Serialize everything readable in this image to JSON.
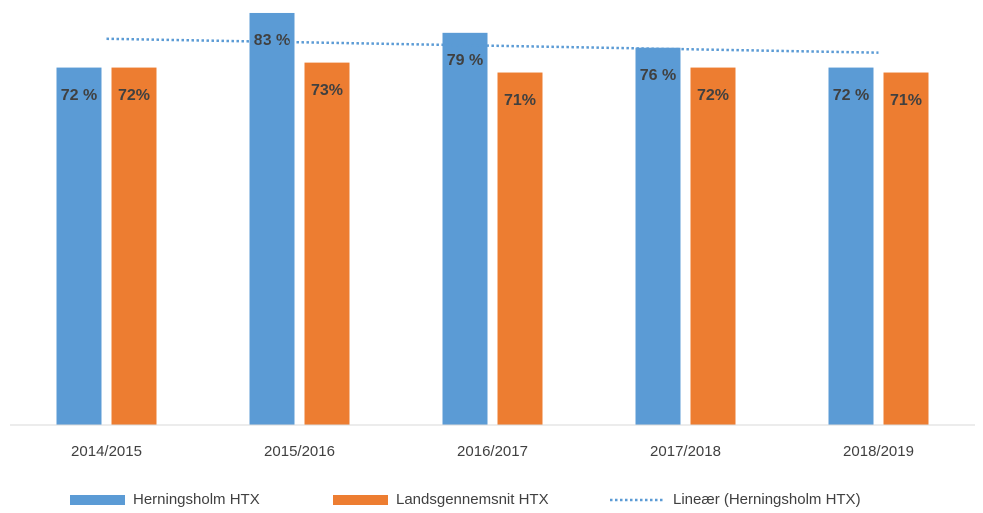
{
  "chart_data": {
    "type": "bar",
    "categories": [
      "2014/2015",
      "2015/2016",
      "2016/2017",
      "2017/2018",
      "2018/2019"
    ],
    "series": [
      {
        "name": "Herningsholm HTX",
        "color": "#5b9bd5",
        "values": [
          72,
          83,
          79,
          76,
          72
        ],
        "value_labels": [
          "72 %",
          "83 %",
          "79 %",
          "76 %",
          "72 %"
        ]
      },
      {
        "name": "Landsgennemsnit HTX",
        "color": "#ed7d31",
        "values": [
          72,
          73,
          71,
          72,
          71
        ],
        "value_labels": [
          "72%",
          "73%",
          "71%",
          "72%",
          "71%"
        ]
      }
    ],
    "trendline": {
      "name": "Lineær (Herningsholm HTX)",
      "color": "#5b9bd5"
    },
    "ylim": [
      0,
      84
    ]
  }
}
